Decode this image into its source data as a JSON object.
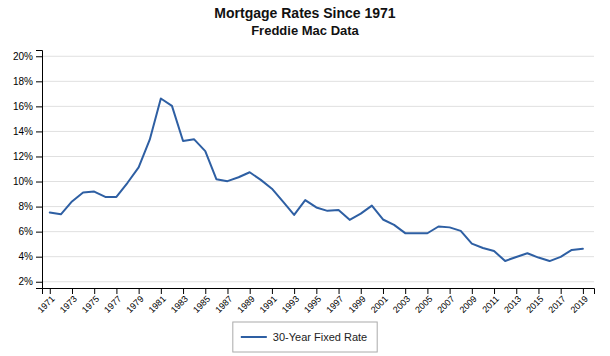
{
  "chart_data": {
    "type": "line",
    "title": "Mortgage Rates Since 1971",
    "subtitle": "Freddie Mac Data",
    "x": [
      1971,
      1972,
      1973,
      1974,
      1975,
      1976,
      1977,
      1978,
      1979,
      1980,
      1981,
      1982,
      1983,
      1984,
      1985,
      1986,
      1987,
      1988,
      1989,
      1990,
      1991,
      1992,
      1993,
      1994,
      1995,
      1996,
      1997,
      1998,
      1999,
      2000,
      2001,
      2002,
      2003,
      2004,
      2005,
      2006,
      2007,
      2008,
      2009,
      2010,
      2011,
      2012,
      2013,
      2014,
      2015,
      2016,
      2017,
      2018,
      2019
    ],
    "series": [
      {
        "name": "30-Year Fixed Rate",
        "color": "#2E5FA3",
        "values": [
          0.0752,
          0.0738,
          0.0841,
          0.0912,
          0.092,
          0.0877,
          0.0877,
          0.099,
          0.1113,
          0.1334,
          0.1663,
          0.1604,
          0.1324,
          0.1337,
          0.1243,
          0.1019,
          0.1003,
          0.1034,
          0.1074,
          0.1013,
          0.0943,
          0.084,
          0.0733,
          0.0852,
          0.0793,
          0.0766,
          0.0773,
          0.0694,
          0.0744,
          0.0808,
          0.0697,
          0.0654,
          0.0588,
          0.0588,
          0.0587,
          0.0641,
          0.0634,
          0.0606,
          0.0504,
          0.0469,
          0.0445,
          0.0366,
          0.0398,
          0.0427,
          0.0393,
          0.0365,
          0.0399,
          0.0454,
          0.0463
        ]
      }
    ],
    "xlim": [
      1970.3,
      2020.0
    ],
    "xticks": [
      1971,
      1973,
      1975,
      1977,
      1979,
      1981,
      1983,
      1985,
      1987,
      1989,
      1991,
      1993,
      1995,
      1997,
      1999,
      2001,
      2003,
      2005,
      2007,
      2009,
      2011,
      2013,
      2015,
      2017,
      2019
    ],
    "ylim": [
      0.015,
      0.205
    ],
    "yticks": [
      {
        "value": 0.02,
        "label": "2%"
      },
      {
        "value": 0.04,
        "label": "4%"
      },
      {
        "value": 0.06,
        "label": "6%"
      },
      {
        "value": 0.08,
        "label": "8%"
      },
      {
        "value": 0.1,
        "label": "10%"
      },
      {
        "value": 0.12,
        "label": "12%"
      },
      {
        "value": 0.14,
        "label": "14%"
      },
      {
        "value": 0.16,
        "label": "16%"
      },
      {
        "value": 0.18,
        "label": "18%"
      },
      {
        "value": 0.2,
        "label": "20%"
      }
    ],
    "grid": true,
    "legend": "bottom"
  }
}
